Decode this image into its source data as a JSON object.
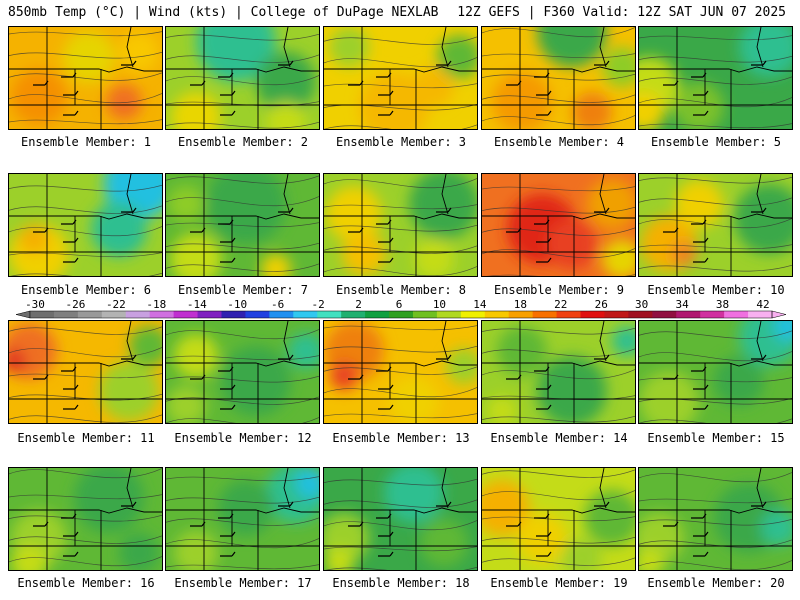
{
  "header": {
    "left": "850mb Temp (°C) | Wind (kts) | College of DuPage NEXLAB",
    "right": "12Z GEFS | F360 Valid: 12Z SAT JUN 07 2025"
  },
  "colorbar": {
    "labels": [
      "-30",
      "-26",
      "-22",
      "-18",
      "-14",
      "-10",
      "-6",
      "-2",
      "2",
      "6",
      "10",
      "14",
      "18",
      "22",
      "26",
      "30",
      "34",
      "38",
      "42"
    ],
    "colors": [
      "#6e6e6e",
      "#7f7f7f",
      "#999999",
      "#b3b3b3",
      "#c8a0e0",
      "#d070e0",
      "#c030d0",
      "#8020c0",
      "#3020b0",
      "#2040e0",
      "#2090f0",
      "#30c8f0",
      "#40e0c0",
      "#20b070",
      "#10a040",
      "#30a020",
      "#70c020",
      "#b0d820",
      "#f0f000",
      "#f8c800",
      "#f8a000",
      "#f87000",
      "#f04010",
      "#e01010",
      "#c01818",
      "#a01020",
      "#901040",
      "#b01870",
      "#d030a0",
      "#f070e0",
      "#f8b0f0"
    ]
  },
  "panels": [
    {
      "label": "Ensemble Member: 1",
      "base": "#f5b200",
      "blobs": [
        {
          "c": "#f59000",
          "x": 30,
          "y": 70,
          "r": 28
        },
        {
          "c": "#ef7020",
          "x": 115,
          "y": 75,
          "r": 18
        },
        {
          "c": "#e6d400",
          "x": 80,
          "y": 30,
          "r": 26
        },
        {
          "c": "#f8c800",
          "x": 130,
          "y": 25,
          "r": 20
        }
      ]
    },
    {
      "label": "Ensemble Member: 2",
      "base": "#9cd02a",
      "blobs": [
        {
          "c": "#2fbf90",
          "x": 70,
          "y": 15,
          "r": 40
        },
        {
          "c": "#3aa848",
          "x": 120,
          "y": 55,
          "r": 30
        },
        {
          "c": "#e9d600",
          "x": 30,
          "y": 90,
          "r": 25
        },
        {
          "c": "#c4dc18",
          "x": 120,
          "y": 95,
          "r": 20
        }
      ]
    },
    {
      "label": "Ensemble Member: 3",
      "base": "#f0d000",
      "blobs": [
        {
          "c": "#f5b800",
          "x": 70,
          "y": 80,
          "r": 35
        },
        {
          "c": "#9cd02a",
          "x": 25,
          "y": 20,
          "r": 20
        },
        {
          "c": "#5fb835",
          "x": 135,
          "y": 30,
          "r": 22
        },
        {
          "c": "#f5b800",
          "x": 110,
          "y": 60,
          "r": 20
        }
      ]
    },
    {
      "label": "Ensemble Member: 4",
      "base": "#f5c000",
      "blobs": [
        {
          "c": "#3aa848",
          "x": 90,
          "y": 5,
          "r": 35
        },
        {
          "c": "#8ecc28",
          "x": 140,
          "y": 40,
          "r": 20
        },
        {
          "c": "#f59a00",
          "x": 40,
          "y": 75,
          "r": 30
        },
        {
          "c": "#ef8010",
          "x": 110,
          "y": 85,
          "r": 20
        }
      ]
    },
    {
      "label": "Ensemble Member: 5",
      "base": "#3aa848",
      "blobs": [
        {
          "c": "#2fbf90",
          "x": 130,
          "y": 20,
          "r": 30
        },
        {
          "c": "#c4dc18",
          "x": 10,
          "y": 60,
          "r": 30
        },
        {
          "c": "#f0d000",
          "x": 5,
          "y": 85,
          "r": 20
        },
        {
          "c": "#7cc12c",
          "x": 60,
          "y": 80,
          "r": 25
        }
      ]
    },
    {
      "label": "Ensemble Member: 6",
      "base": "#9cd02a",
      "blobs": [
        {
          "c": "#21c0e0",
          "x": 130,
          "y": 10,
          "r": 35
        },
        {
          "c": "#2fbf90",
          "x": 110,
          "y": 55,
          "r": 28
        },
        {
          "c": "#f0d000",
          "x": 30,
          "y": 80,
          "r": 30
        },
        {
          "c": "#f5b000",
          "x": 25,
          "y": 65,
          "r": 15
        }
      ]
    },
    {
      "label": "Ensemble Member: 7",
      "base": "#5fb835",
      "blobs": [
        {
          "c": "#3aa848",
          "x": 80,
          "y": 30,
          "r": 40
        },
        {
          "c": "#c4dc18",
          "x": 30,
          "y": 85,
          "r": 26
        },
        {
          "c": "#f0d000",
          "x": 110,
          "y": 95,
          "r": 15
        },
        {
          "c": "#8ecc28",
          "x": 20,
          "y": 30,
          "r": 18
        }
      ]
    },
    {
      "label": "Ensemble Member: 8",
      "base": "#9cd02a",
      "blobs": [
        {
          "c": "#3aa848",
          "x": 120,
          "y": 30,
          "r": 35
        },
        {
          "c": "#f0d000",
          "x": 30,
          "y": 40,
          "r": 28
        },
        {
          "c": "#f5c000",
          "x": 40,
          "y": 80,
          "r": 22
        },
        {
          "c": "#c4dc18",
          "x": 110,
          "y": 85,
          "r": 20
        }
      ]
    },
    {
      "label": "Ensemble Member: 9",
      "base": "#f07020",
      "blobs": [
        {
          "c": "#e02818",
          "x": 60,
          "y": 55,
          "r": 35
        },
        {
          "c": "#f0a000",
          "x": 130,
          "y": 30,
          "r": 25
        },
        {
          "c": "#e6d400",
          "x": 140,
          "y": 85,
          "r": 20
        },
        {
          "c": "#e84020",
          "x": 90,
          "y": 70,
          "r": 25
        }
      ]
    },
    {
      "label": "Ensemble Member: 10",
      "base": "#9cd02a",
      "blobs": [
        {
          "c": "#3aa848",
          "x": 130,
          "y": 45,
          "r": 35
        },
        {
          "c": "#f5b000",
          "x": 30,
          "y": 70,
          "r": 28
        },
        {
          "c": "#f0d000",
          "x": 60,
          "y": 30,
          "r": 24
        },
        {
          "c": "#ef8020",
          "x": 45,
          "y": 80,
          "r": 12
        }
      ]
    },
    {
      "label": "Ensemble Member: 11",
      "base": "#f5b800",
      "blobs": [
        {
          "c": "#ef7020",
          "x": 20,
          "y": 30,
          "r": 28
        },
        {
          "c": "#e03020",
          "x": 5,
          "y": 40,
          "r": 12
        },
        {
          "c": "#9cd02a",
          "x": 120,
          "y": 70,
          "r": 30
        },
        {
          "c": "#5fb835",
          "x": 140,
          "y": 25,
          "r": 20
        }
      ]
    },
    {
      "label": "Ensemble Member: 12",
      "base": "#5fb835",
      "blobs": [
        {
          "c": "#3aa848",
          "x": 90,
          "y": 60,
          "r": 35
        },
        {
          "c": "#2fbf90",
          "x": 140,
          "y": 30,
          "r": 18
        },
        {
          "c": "#c4dc18",
          "x": 30,
          "y": 35,
          "r": 22
        },
        {
          "c": "#9cd02a",
          "x": 20,
          "y": 85,
          "r": 20
        }
      ]
    },
    {
      "label": "Ensemble Member: 13",
      "base": "#f5c000",
      "blobs": [
        {
          "c": "#ef8010",
          "x": 30,
          "y": 30,
          "r": 30
        },
        {
          "c": "#e84020",
          "x": 20,
          "y": 55,
          "r": 14
        },
        {
          "c": "#f0d000",
          "x": 90,
          "y": 80,
          "r": 25
        },
        {
          "c": "#9cd02a",
          "x": 140,
          "y": 45,
          "r": 18
        }
      ]
    },
    {
      "label": "Ensemble Member: 14",
      "base": "#9cd02a",
      "blobs": [
        {
          "c": "#3aa848",
          "x": 90,
          "y": 70,
          "r": 35
        },
        {
          "c": "#5fb835",
          "x": 40,
          "y": 30,
          "r": 25
        },
        {
          "c": "#2fbf90",
          "x": 145,
          "y": 20,
          "r": 15
        },
        {
          "c": "#c4dc18",
          "x": 20,
          "y": 90,
          "r": 15
        }
      ]
    },
    {
      "label": "Ensemble Member: 15",
      "base": "#5fb835",
      "blobs": [
        {
          "c": "#2fbf90",
          "x": 130,
          "y": 15,
          "r": 30
        },
        {
          "c": "#21c0e0",
          "x": 150,
          "y": 5,
          "r": 15
        },
        {
          "c": "#9cd02a",
          "x": 30,
          "y": 80,
          "r": 30
        },
        {
          "c": "#3aa848",
          "x": 100,
          "y": 60,
          "r": 25
        }
      ]
    },
    {
      "label": "Ensemble Member: 16",
      "base": "#5fb835",
      "blobs": [
        {
          "c": "#3aa848",
          "x": 100,
          "y": 30,
          "r": 35
        },
        {
          "c": "#9cd02a",
          "x": 30,
          "y": 70,
          "r": 28
        },
        {
          "c": "#c4dc18",
          "x": 20,
          "y": 95,
          "r": 18
        },
        {
          "c": "#3aa848",
          "x": 130,
          "y": 85,
          "r": 20
        }
      ]
    },
    {
      "label": "Ensemble Member: 17",
      "base": "#5fb835",
      "blobs": [
        {
          "c": "#2fbf90",
          "x": 130,
          "y": 25,
          "r": 30
        },
        {
          "c": "#21c0e0",
          "x": 145,
          "y": 15,
          "r": 15
        },
        {
          "c": "#3aa848",
          "x": 80,
          "y": 40,
          "r": 28
        },
        {
          "c": "#9cd02a",
          "x": 30,
          "y": 85,
          "r": 22
        }
      ]
    },
    {
      "label": "Ensemble Member: 18",
      "base": "#3aa848",
      "blobs": [
        {
          "c": "#2fbf90",
          "x": 90,
          "y": 25,
          "r": 30
        },
        {
          "c": "#9cd02a",
          "x": 20,
          "y": 70,
          "r": 25
        },
        {
          "c": "#5fb835",
          "x": 120,
          "y": 75,
          "r": 24
        },
        {
          "c": "#c4dc18",
          "x": 15,
          "y": 95,
          "r": 15
        }
      ]
    },
    {
      "label": "Ensemble Member: 19",
      "base": "#c4dc18",
      "blobs": [
        {
          "c": "#f5b000",
          "x": 20,
          "y": 40,
          "r": 28
        },
        {
          "c": "#f0d000",
          "x": 60,
          "y": 70,
          "r": 25
        },
        {
          "c": "#5fb835",
          "x": 130,
          "y": 50,
          "r": 28
        },
        {
          "c": "#9cd02a",
          "x": 100,
          "y": 90,
          "r": 20
        }
      ]
    },
    {
      "label": "Ensemble Member: 20",
      "base": "#5fb835",
      "blobs": [
        {
          "c": "#3aa848",
          "x": 110,
          "y": 50,
          "r": 35
        },
        {
          "c": "#2fbf90",
          "x": 140,
          "y": 60,
          "r": 18
        },
        {
          "c": "#9cd02a",
          "x": 20,
          "y": 70,
          "r": 25
        },
        {
          "c": "#c4dc18",
          "x": 10,
          "y": 95,
          "r": 15
        }
      ]
    }
  ]
}
